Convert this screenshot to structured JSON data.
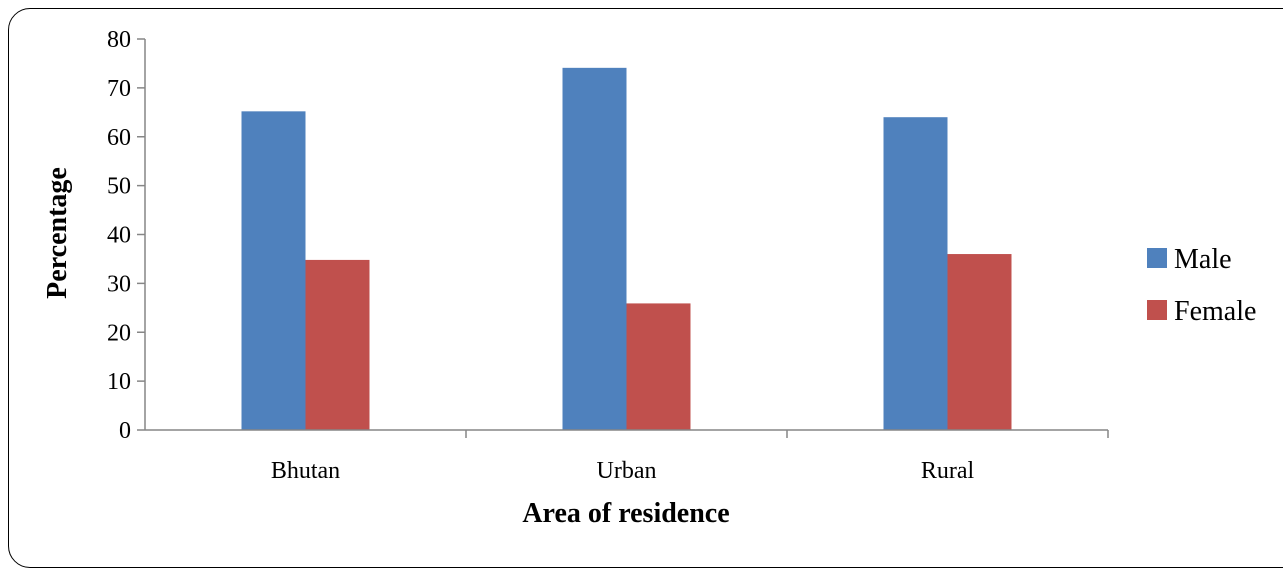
{
  "chart_data": {
    "type": "bar",
    "title": "",
    "xlabel": "Area of residence",
    "ylabel": "Percentage",
    "categories": [
      "Bhutan",
      "Urban",
      "Rural"
    ],
    "series": [
      {
        "name": "Male",
        "values": [
          65.2,
          74.1,
          64.0
        ],
        "color": "#4F81BD"
      },
      {
        "name": "Female",
        "values": [
          34.8,
          25.9,
          36.0
        ],
        "color": "#C0504D"
      }
    ],
    "ylim": [
      0,
      80
    ],
    "yticks": [
      0,
      10,
      20,
      30,
      40,
      50,
      60,
      70,
      80
    ],
    "grid": false,
    "legend_position": "right"
  }
}
